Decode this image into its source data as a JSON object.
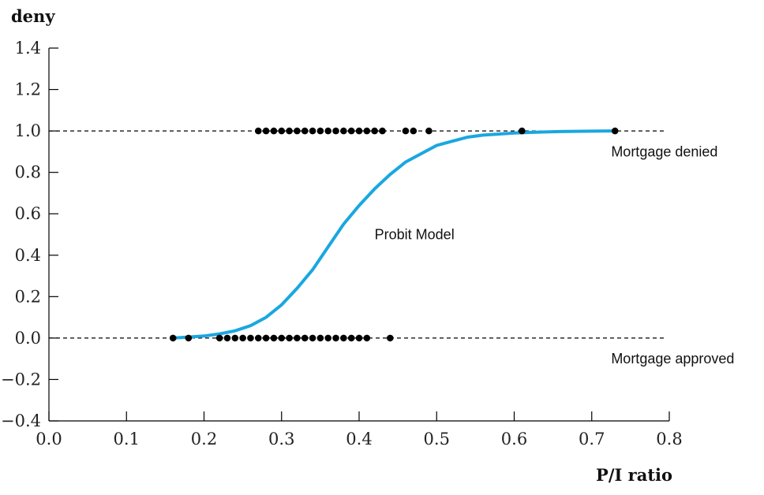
{
  "chart_data": {
    "type": "scatter",
    "xlabel": "P/I ratio",
    "ylabel": "deny",
    "xlim": [
      0.0,
      0.8
    ],
    "ylim": [
      -0.4,
      1.4
    ],
    "x_ticks": [
      "0.0",
      "0.1",
      "0.2",
      "0.3",
      "0.4",
      "0.5",
      "0.6",
      "0.7",
      "0.8"
    ],
    "y_ticks": [
      "1.4",
      "1.2",
      "1.0",
      "0.8",
      "0.6",
      "0.4",
      "0.2",
      "0.0",
      "−0.2",
      "−0.4"
    ],
    "reference_lines_y": [
      1.0,
      0.0
    ],
    "series": [
      {
        "name": "Mortgage denied",
        "y": 1.0,
        "x": [
          0.27,
          0.28,
          0.29,
          0.3,
          0.31,
          0.32,
          0.33,
          0.34,
          0.35,
          0.36,
          0.37,
          0.38,
          0.39,
          0.4,
          0.41,
          0.42,
          0.43,
          0.46,
          0.47,
          0.49,
          0.61,
          0.73
        ]
      },
      {
        "name": "Mortgage approved",
        "y": 0.0,
        "x": [
          0.16,
          0.18,
          0.22,
          0.23,
          0.24,
          0.25,
          0.26,
          0.27,
          0.28,
          0.29,
          0.3,
          0.31,
          0.32,
          0.33,
          0.34,
          0.35,
          0.36,
          0.37,
          0.38,
          0.39,
          0.4,
          0.41,
          0.44
        ]
      }
    ],
    "curve": {
      "name": "Probit Model",
      "x": [
        0.16,
        0.18,
        0.2,
        0.22,
        0.24,
        0.26,
        0.28,
        0.3,
        0.32,
        0.34,
        0.36,
        0.38,
        0.4,
        0.42,
        0.44,
        0.46,
        0.48,
        0.5,
        0.52,
        0.54,
        0.56,
        0.58,
        0.6,
        0.62,
        0.64,
        0.66,
        0.68,
        0.7,
        0.73
      ],
      "y": [
        0.0,
        0.005,
        0.01,
        0.02,
        0.035,
        0.06,
        0.1,
        0.16,
        0.24,
        0.33,
        0.44,
        0.55,
        0.64,
        0.72,
        0.79,
        0.85,
        0.89,
        0.93,
        0.95,
        0.97,
        0.98,
        0.985,
        0.99,
        0.993,
        0.995,
        0.997,
        0.998,
        0.999,
        1.0
      ]
    },
    "annotations": [
      {
        "text": "Probit Model",
        "x": 0.42,
        "y": 0.5
      },
      {
        "text": "Mortgage denied",
        "x": 0.725,
        "y": 0.9
      },
      {
        "text": "Mortgage approved",
        "x": 0.725,
        "y": -0.1
      }
    ],
    "grid": false
  }
}
